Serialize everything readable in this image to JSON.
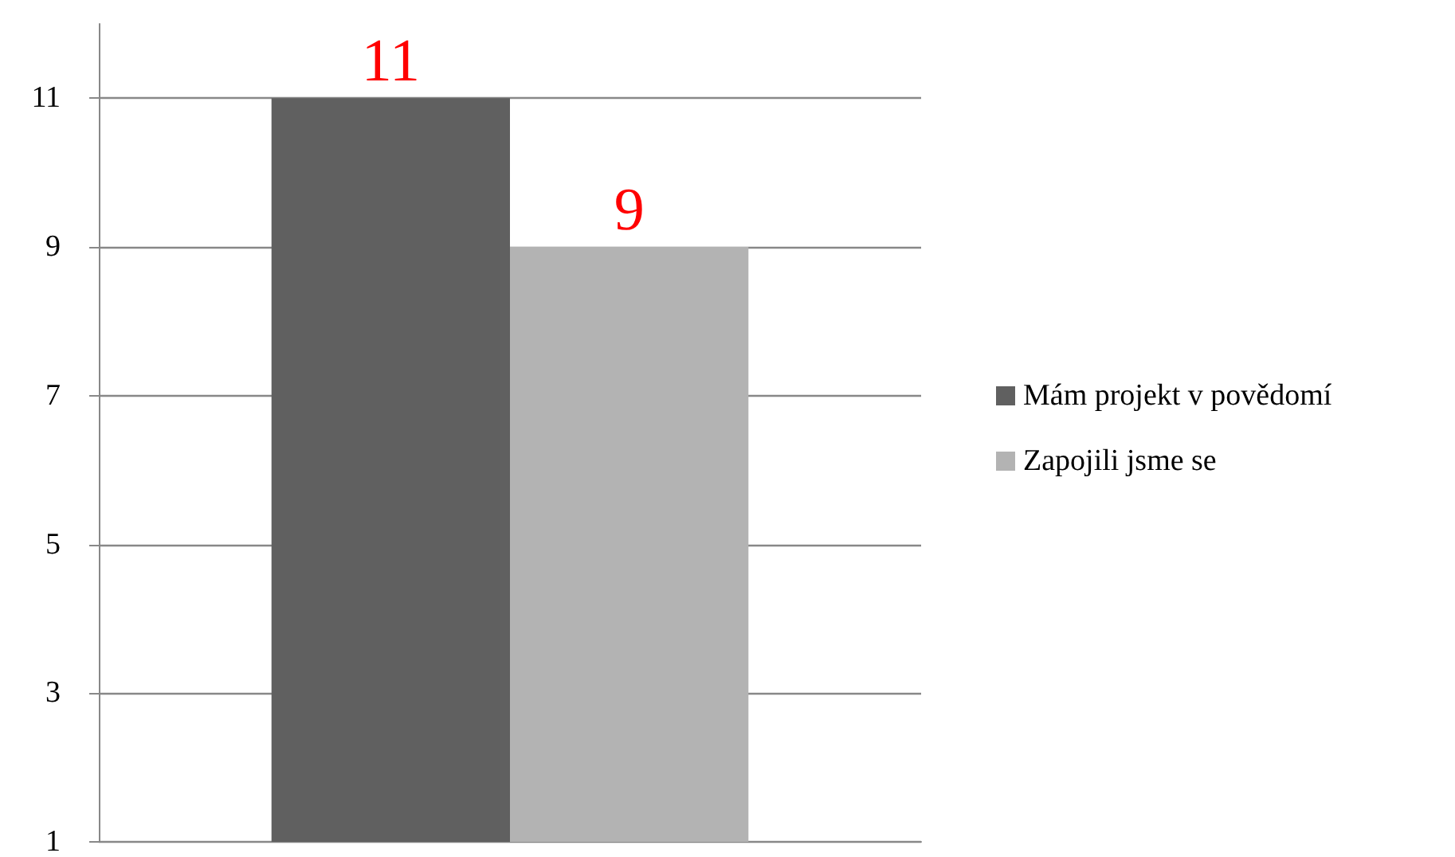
{
  "chart_data": {
    "type": "bar",
    "categories": [
      null
    ],
    "series": [
      {
        "name": "Mám projekt v povědomí",
        "color": "#606060",
        "values": [
          11
        ]
      },
      {
        "name": "Zapojili jsme se",
        "color": "#b3b3b3",
        "values": [
          9
        ]
      }
    ],
    "ylim": [
      1,
      12
    ],
    "yticks": [
      1,
      3,
      5,
      7,
      9,
      11
    ],
    "grid": "y",
    "legend": "right",
    "data_labels": true
  }
}
